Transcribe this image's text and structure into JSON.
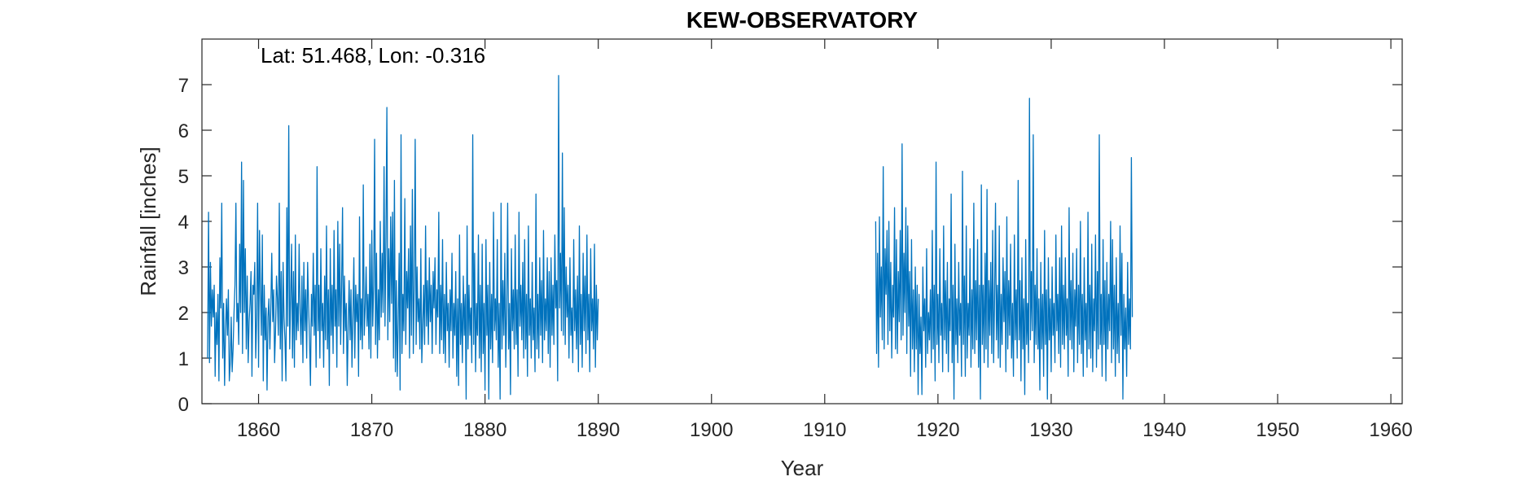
{
  "chart_data": {
    "type": "line",
    "title": "KEW-OBSERVATORY",
    "annotation": "Lat: 51.468, Lon: -0.316",
    "xlabel": "Year",
    "ylabel": "Rainfall [inches]",
    "xlim": [
      1855,
      1961
    ],
    "ylim": [
      0,
      8
    ],
    "xticks": [
      1860,
      1870,
      1880,
      1890,
      1900,
      1910,
      1920,
      1930,
      1940,
      1950,
      1960
    ],
    "yticks": [
      0,
      1,
      2,
      3,
      4,
      5,
      6,
      7
    ],
    "grid": false,
    "series": [
      {
        "color": "#0072BD",
        "segments": [
          {
            "start_year": 1855.5,
            "step_years": 0.08333,
            "values": [
              1.0,
              4.2,
              0.9,
              3.1,
              1.7,
              2.5,
              1.9,
              2.6,
              0.6,
              2.0,
              1.3,
              2.4,
              0.5,
              3.2,
              2.1,
              4.4,
              1.0,
              2.2,
              0.4,
              1.6,
              2.3,
              1.5,
              2.5,
              0.5,
              0.9,
              1.9,
              0.7,
              1.2,
              2.0,
              2.6,
              4.4,
              1.8,
              2.2,
              1.3,
              3.5,
              2.0,
              5.3,
              1.1,
              4.9,
              2.0,
              3.4,
              1.2,
              2.8,
              0.9,
              1.8,
              2.2,
              2.9,
              0.6,
              2.6,
              2.4,
              3.1,
              1.0,
              1.9,
              4.4,
              0.8,
              3.8,
              2.5,
              1.5,
              3.7,
              0.5,
              2.6,
              1.4,
              2.1,
              0.3,
              1.9,
              2.3,
              1.2,
              2.1,
              3.3,
              1.8,
              2.5,
              0.9,
              1.6,
              2.8,
              2.3,
              1.5,
              4.4,
              1.2,
              2.9,
              0.5,
              3.1,
              1.9,
              1.4,
              0.5,
              4.3,
              1.7,
              6.1,
              1.2,
              2.3,
              3.5,
              1.0,
              2.9,
              0.8,
              3.7,
              1.4,
              2.2,
              1.6,
              3.5,
              2.0,
              1.3,
              2.8,
              0.9,
              3.1,
              1.6,
              2.5,
              1.0,
              3.1,
              2.2,
              1.4,
              0.4,
              2.4,
              1.7,
              3.3,
              1.5,
              2.6,
              0.8,
              5.2,
              1.6,
              2.6,
              1.0,
              3.4,
              1.6,
              2.2,
              0.8,
              2.8,
              1.4,
              3.9,
              1.2,
              2.5,
              0.4,
              3.4,
              1.5,
              2.6,
              1.1,
              3.8,
              1.7,
              2.5,
              0.8,
              4.0,
              1.7,
              3.5,
              1.3,
              2.6,
              4.3,
              1.1,
              2.8,
              1.6,
              2.2,
              0.4,
              1.7,
              2.7,
              1.4,
              2.5,
              0.8,
              1.9,
              3.2,
              1.0,
              2.6,
              1.8,
              2.4,
              0.6,
              4.1,
              1.4,
              2.3,
              1.2,
              4.8,
              1.5,
              2.1,
              3.0,
              1.7,
              2.4,
              1.2,
              3.5,
              1.0,
              3.8,
              1.7,
              2.6,
              5.8,
              1.3,
              3.3,
              1.0,
              2.5,
              1.4,
              4.0,
              1.9,
              3.3,
              2.0,
              5.2,
              1.7,
              3.6,
              6.5,
              1.4,
              3.4,
              1.8,
              4.1,
              2.2,
              4.2,
              1.0,
              4.9,
              0.7,
              2.7,
              0.6,
              1.8,
              3.3,
              0.3,
              5.9,
              1.1,
              2.4,
              1.6,
              4.5,
              1.3,
              2.9,
              2.1,
              3.4,
              1.0,
              3.9,
              1.5,
              4.7,
              1.1,
              2.6,
              5.8,
              1.3,
              3.0,
              1.8,
              2.3,
              1.2,
              3.4,
              0.9,
              1.7,
              2.6,
              1.3,
              3.9,
              1.7,
              2.7,
              1.3,
              3.2,
              1.8,
              2.6,
              1.1,
              2.9,
              2.1,
              3.2,
              1.3,
              2.5,
              1.9,
              4.2,
              1.1,
              2.6,
              1.4,
              3.6,
              1.1,
              2.4,
              0.9,
              3.1,
              1.6,
              2.2,
              0.8,
              2.5,
              1.6,
              3.3,
              1.0,
              2.2,
              1.5,
              2.9,
              0.6,
              2.3,
              0.4,
              3.7,
              1.3,
              2.2,
              0.9,
              2.8,
              1.5,
              2.4,
              0.1,
              3.9,
              1.2,
              2.6,
              1.5,
              2.1,
              0.9,
              5.9,
              1.3,
              3.3,
              0.7,
              2.2,
              1.5,
              3.7,
              1.0,
              2.6,
              0.7,
              3.5,
              1.1,
              2.2,
              0.3,
              3.6,
              1.5,
              2.6,
              0.1,
              3.1,
              1.2,
              2.4,
              0.9,
              4.2,
              1.6,
              2.3,
              1.4,
              3.6,
              0.8,
              2.2,
              0.1,
              4.4,
              1.2,
              2.7,
              1.5,
              3.3,
              0.8,
              2.1,
              4.4,
              1.2,
              2.2,
              0.2,
              3.4,
              1.6,
              2.5,
              1.2,
              3.7,
              1.3,
              2.5,
              0.6,
              4.2,
              1.7,
              2.6,
              1.4,
              3.1,
              1.0,
              3.6,
              1.2,
              2.4,
              0.6,
              3.9,
              1.5,
              2.3,
              1.0,
              3.1,
              1.4,
              2.1,
              0.7,
              4.6,
              1.2,
              2.4,
              1.0,
              3.2,
              1.5,
              2.7,
              0.9,
              3.8,
              1.4,
              2.3,
              1.6,
              3.2,
              1.1,
              2.9,
              0.8,
              3.2,
              1.5,
              2.6,
              1.3,
              3.7,
              2.1,
              2.7,
              0.5,
              7.2,
              2.1,
              3.3,
              1.6,
              5.5,
              1.5,
              4.3,
              1.3,
              3.0,
              1.9,
              2.6,
              1.0,
              3.2,
              1.5,
              2.1,
              0.9,
              3.6,
              1.6,
              2.5,
              1.2,
              2.8,
              0.7,
              3.9,
              1.3,
              2.4,
              0.8,
              3.3,
              1.6,
              2.8,
              1.1,
              3.7,
              1.4,
              2.4,
              0.7,
              3.4,
              1.6,
              2.3,
              1.2,
              3.5,
              0.8,
              2.6,
              1.4,
              2.3
            ]
          },
          {
            "start_year": 1914.5,
            "step_years": 0.08333,
            "values": [
              4.0,
              1.1,
              3.3,
              0.8,
              4.1,
              1.9,
              3.0,
              1.4,
              5.2,
              1.2,
              3.4,
              2.4,
              3.8,
              1.3,
              4.0,
              1.6,
              3.1,
              1.0,
              2.6,
              1.9,
              4.3,
              1.2,
              3.6,
              1.1,
              2.9,
              1.8,
              3.8,
              1.4,
              5.7,
              1.5,
              3.3,
              2.0,
              4.3,
              1.1,
              3.9,
              1.7,
              2.9,
              0.6,
              3.6,
              1.2,
              2.5,
              0.7,
              3.0,
              1.2,
              2.6,
              0.2,
              2.4,
              1.1,
              1.9,
              0.2,
              3.0,
              1.6,
              2.3,
              0.8,
              3.4,
              1.1,
              2.0,
              1.4,
              2.5,
              0.9,
              3.8,
              1.2,
              2.6,
              0.5,
              5.3,
              1.3,
              2.4,
              0.9,
              3.4,
              1.5,
              2.2,
              0.7,
              3.9,
              1.4,
              2.7,
              1.1,
              3.1,
              0.7,
              2.3,
              1.6,
              4.6,
              0.9,
              2.6,
              0.1,
              3.5,
              1.3,
              2.3,
              0.9,
              3.1,
              1.5,
              2.2,
              0.6,
              5.1,
              1.3,
              2.8,
              0.6,
              3.9,
              1.0,
              2.2,
              1.5,
              3.4,
              0.8,
              2.5,
              1.2,
              4.4,
              1.1,
              2.7,
              1.4,
              3.6,
              0.8,
              2.6,
              0.1,
              4.8,
              1.3,
              2.6,
              0.9,
              3.3,
              1.2,
              4.7,
              0.8,
              2.7,
              1.5,
              3.1,
              1.1,
              3.8,
              0.9,
              2.3,
              4.4,
              1.4,
              2.6,
              1.0,
              3.9,
              0.8,
              2.4,
              1.3,
              3.2,
              1.8,
              2.9,
              0.7,
              4.1,
              1.2,
              2.7,
              1.5,
              3.5,
              1.0,
              2.2,
              0.6,
              3.7,
              1.4,
              2.5,
              1.0,
              4.9,
              1.4,
              2.7,
              0.5,
              3.2,
              1.2,
              2.3,
              0.2,
              3.6,
              1.3,
              2.2,
              0.9,
              6.7,
              1.4,
              2.9,
              1.6,
              5.9,
              0.9,
              2.6,
              1.3,
              3.4,
              1.2,
              2.3,
              0.3,
              3.1,
              1.2,
              2.4,
              0.6,
              3.8,
              1.3,
              2.5,
              0.1,
              3.2,
              1.4,
              2.3,
              0.7,
              3.0,
              1.5,
              2.2,
              0.9,
              3.7,
              1.6,
              2.4,
              1.1,
              3.2,
              0.8,
              3.9,
              1.3,
              2.6,
              1.2,
              3.2,
              1.5,
              2.3,
              0.6,
              4.3,
              1.4,
              2.7,
              1.2,
              3.3,
              0.7,
              2.5,
              1.7,
              3.4,
              0.9,
              2.6,
              1.3,
              4.0,
              1.1,
              2.4,
              0.6,
              3.2,
              1.4,
              2.2,
              0.8,
              4.2,
              1.2,
              2.6,
              1.0,
              3.5,
              0.7,
              2.3,
              1.6,
              3.7,
              0.8,
              2.9,
              1.2,
              5.9,
              1.3,
              2.4,
              0.6,
              3.6,
              1.3,
              2.7,
              0.5,
              3.1,
              1.2,
              2.4,
              1.6,
              4.0,
              0.9,
              3.6,
              1.2,
              2.6,
              0.6,
              3.2,
              1.1,
              2.2,
              0.9,
              3.9,
              1.5,
              3.3,
              0.1,
              2.4,
              1.2,
              2.1,
              0.6,
              3.1,
              1.3,
              2.3,
              1.2,
              5.4,
              1.9
            ]
          }
        ]
      }
    ]
  }
}
